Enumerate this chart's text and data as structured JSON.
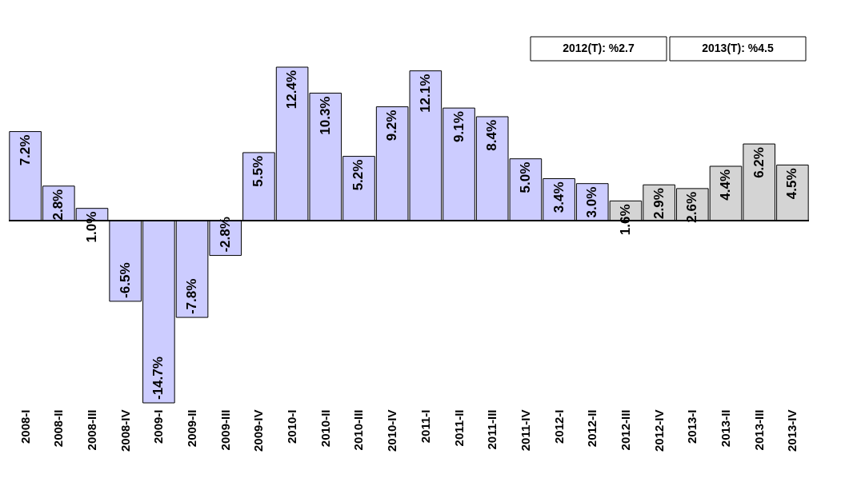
{
  "chart_data": {
    "type": "bar",
    "categories": [
      "2008-I",
      "2008-II",
      "2008-III",
      "2008-IV",
      "2009-I",
      "2009-II",
      "2009-III",
      "2009-IV",
      "2010-I",
      "2010-II",
      "2010-III",
      "2010-IV",
      "2011-I",
      "2011-II",
      "2011-III",
      "2011-IV",
      "2012-I",
      "2012-II",
      "2012-III",
      "2012-IV",
      "2013-I",
      "2013-II",
      "2013-III",
      "2013-IV"
    ],
    "values": [
      7.2,
      2.8,
      1.0,
      -6.5,
      -14.7,
      -7.8,
      -2.8,
      5.5,
      12.4,
      10.3,
      5.2,
      9.2,
      12.1,
      9.1,
      8.4,
      5.0,
      3.4,
      3.0,
      1.6,
      2.9,
      2.6,
      4.4,
      6.2,
      4.5
    ],
    "value_labels": [
      "7.2%",
      "2.8%",
      "1.0%",
      "-6.5%",
      "-14.7%",
      "-7.8%",
      "-2.8%",
      "5.5%",
      "12.4%",
      "10.3%",
      "5.2%",
      "9.2%",
      "12.1%",
      "9.1%",
      "8.4%",
      "5.0%",
      "3.4%",
      "3.0%",
      "1.6%",
      "2.9%",
      "2.6%",
      "4.4%",
      "6.2%",
      "4.5%"
    ],
    "colors": [
      "#ccccff",
      "#ccccff",
      "#ccccff",
      "#ccccff",
      "#ccccff",
      "#ccccff",
      "#ccccff",
      "#ccccff",
      "#ccccff",
      "#ccccff",
      "#ccccff",
      "#ccccff",
      "#ccccff",
      "#ccccff",
      "#ccccff",
      "#ccccff",
      "#ccccff",
      "#ccccff",
      "#d4d4d4",
      "#d4d4d4",
      "#d4d4d4",
      "#d4d4d4",
      "#d4d4d4",
      "#d4d4d4"
    ],
    "annotations": [
      "2012(T): %2.7",
      "2013(T): %4.5"
    ],
    "grid": false
  }
}
